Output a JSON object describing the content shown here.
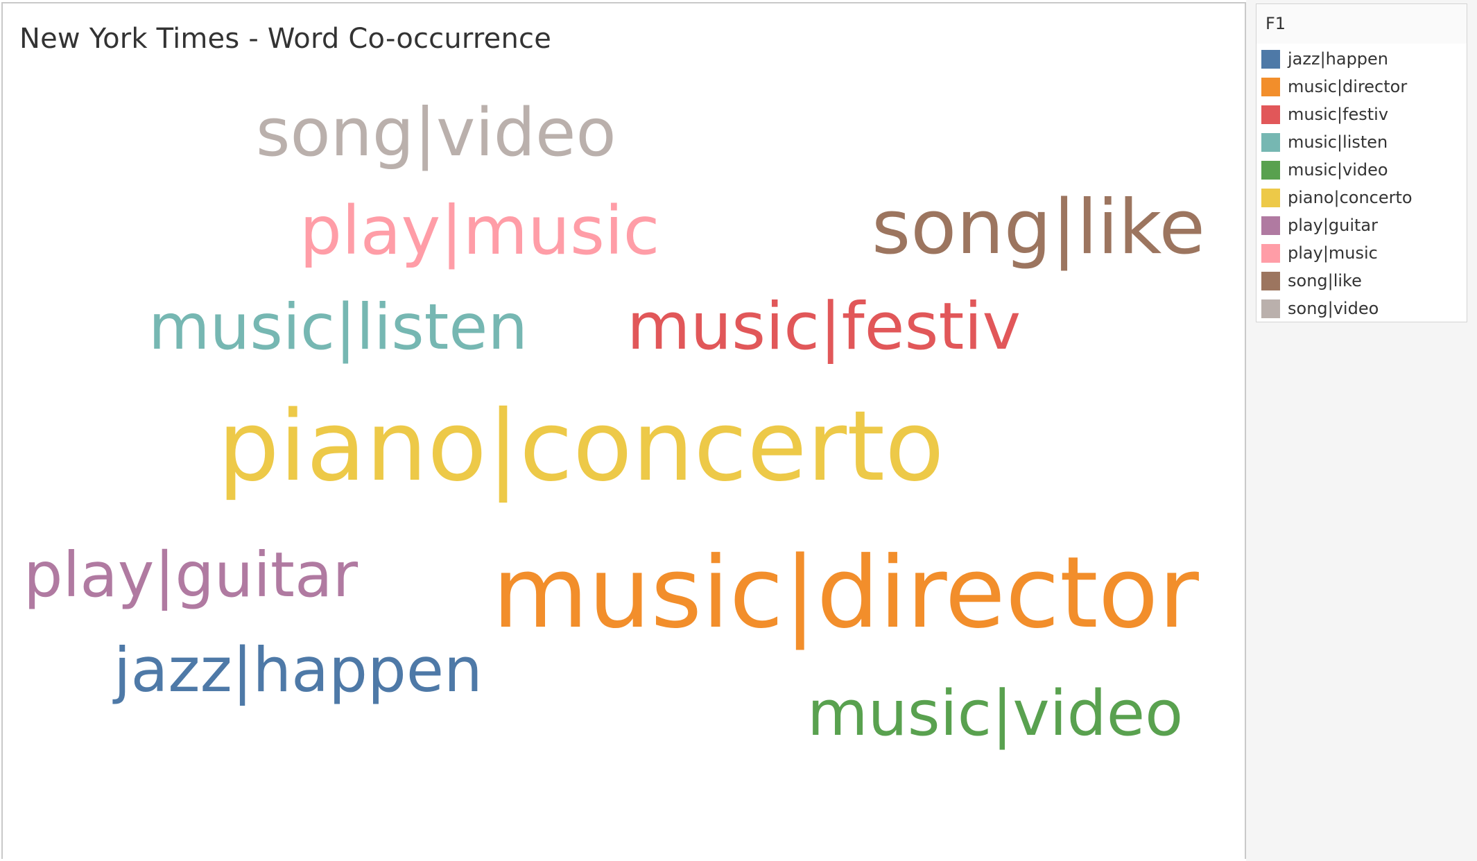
{
  "title": "New York Times - Word Co-occurrence",
  "legend": {
    "title": "F1",
    "items": [
      {
        "label": "jazz|happen",
        "color": "#4e79a7"
      },
      {
        "label": "music|director",
        "color": "#f28e2b"
      },
      {
        "label": "music|festiv",
        "color": "#e15759"
      },
      {
        "label": "music|listen",
        "color": "#76b7b2"
      },
      {
        "label": "music|video",
        "color": "#59a14f"
      },
      {
        "label": "piano|concerto",
        "color": "#edc948"
      },
      {
        "label": "play|guitar",
        "color": "#b07aa1"
      },
      {
        "label": "play|music",
        "color": "#ff9da7"
      },
      {
        "label": "song|like",
        "color": "#9c755f"
      },
      {
        "label": "song|video",
        "color": "#bab0ac"
      }
    ]
  },
  "chart_data": {
    "type": "word_cloud",
    "title": "New York Times - Word Co-occurrence",
    "color_legend_title": "F1",
    "words": [
      {
        "text": "song|video",
        "color": "#bab0ac"
      },
      {
        "text": "play|music",
        "color": "#ff9da7"
      },
      {
        "text": "song|like",
        "color": "#9c755f"
      },
      {
        "text": "music|listen",
        "color": "#76b7b2"
      },
      {
        "text": "music|festiv",
        "color": "#e15759"
      },
      {
        "text": "piano|concerto",
        "color": "#edc948"
      },
      {
        "text": "play|guitar",
        "color": "#b07aa1"
      },
      {
        "text": "music|director",
        "color": "#f28e2b"
      },
      {
        "text": "jazz|happen",
        "color": "#4e79a7"
      },
      {
        "text": "music|video",
        "color": "#59a14f"
      }
    ]
  }
}
